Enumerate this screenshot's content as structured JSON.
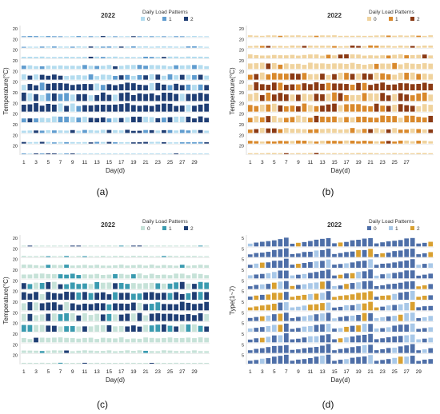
{
  "chart_data": [
    {
      "panel": "a",
      "type": "bar",
      "title": "2022",
      "legend_title": "Daily Load Patterns",
      "legend": [
        "0",
        "1",
        "2"
      ],
      "colors": [
        "#b3dcef",
        "#5f9ccf",
        "#1f3e74"
      ],
      "xlabel": "Day(d)",
      "ylabel": "Temperature(°C)",
      "x_ticks": [
        "1",
        "3",
        "5",
        "7",
        "9",
        "11",
        "13",
        "15",
        "17",
        "19",
        "21",
        "23",
        "25",
        "27",
        "29"
      ],
      "y_tick_label": "20",
      "rows": 12,
      "days": 31,
      "row_heights": [
        0.12,
        0.15,
        0.2,
        0.45,
        0.6,
        0.85,
        0.95,
        0.95,
        0.65,
        0.35,
        0.2,
        0.1
      ],
      "row_class_weights": [
        [
          0.6,
          0.3,
          0.1
        ],
        [
          0.6,
          0.3,
          0.1
        ],
        [
          0.7,
          0.2,
          0.1
        ],
        [
          0.7,
          0.25,
          0.05
        ],
        [
          0.5,
          0.2,
          0.3
        ],
        [
          0.1,
          0.2,
          0.7
        ],
        [
          0.15,
          0.1,
          0.75
        ],
        [
          0.15,
          0.05,
          0.8
        ],
        [
          0.4,
          0.2,
          0.4
        ],
        [
          0.55,
          0.2,
          0.25
        ],
        [
          0.6,
          0.2,
          0.2
        ],
        [
          0.6,
          0.2,
          0.2
        ]
      ]
    },
    {
      "panel": "b",
      "type": "bar",
      "title": "2022",
      "legend_title": "Daily Load Patterns",
      "legend": [
        "0",
        "1",
        "2"
      ],
      "colors": [
        "#f0d39e",
        "#d9892c",
        "#8b3a14"
      ],
      "xlabel": "Day(d)",
      "ylabel": "Temperature(°C)",
      "x_ticks": [
        "1",
        "3",
        "5",
        "7",
        "9",
        "11",
        "13",
        "15",
        "17",
        "19",
        "21",
        "23",
        "25",
        "27"
      ],
      "y_tick_label": "20",
      "rows": 12,
      "days": 31,
      "row_heights": [
        0.2,
        0.25,
        0.45,
        0.7,
        0.8,
        0.9,
        0.95,
        0.9,
        0.75,
        0.55,
        0.35,
        0.15
      ],
      "row_class_weights": [
        [
          0.8,
          0.15,
          0.05
        ],
        [
          0.7,
          0.2,
          0.1
        ],
        [
          0.8,
          0.15,
          0.05
        ],
        [
          0.75,
          0.2,
          0.05
        ],
        [
          0.3,
          0.4,
          0.3
        ],
        [
          0.1,
          0.2,
          0.7
        ],
        [
          0.25,
          0.35,
          0.4
        ],
        [
          0.3,
          0.4,
          0.3
        ],
        [
          0.15,
          0.7,
          0.15
        ],
        [
          0.6,
          0.3,
          0.1
        ],
        [
          0.5,
          0.45,
          0.05
        ],
        [
          0.85,
          0.1,
          0.05
        ]
      ]
    },
    {
      "panel": "c",
      "type": "bar",
      "title": "2022",
      "legend_title": "Daily Load Patterns",
      "legend": [
        "0",
        "1",
        "2"
      ],
      "colors": [
        "#c6e2d8",
        "#3a9bb0",
        "#1f3e74"
      ],
      "xlabel": "Day(d)",
      "ylabel": "Temperature(°C)",
      "x_ticks": [
        "1",
        "3",
        "5",
        "7",
        "9",
        "11",
        "13",
        "15",
        "17",
        "19",
        "21",
        "23",
        "25",
        "27",
        "29"
      ],
      "y_tick_label": "20",
      "rows": 12,
      "days": 31,
      "row_heights": [
        0.1,
        0.15,
        0.35,
        0.55,
        0.8,
        0.9,
        0.95,
        0.9,
        0.85,
        0.55,
        0.3,
        0.1
      ],
      "row_class_weights": [
        [
          0.8,
          0.1,
          0.1
        ],
        [
          0.85,
          0.1,
          0.05
        ],
        [
          0.9,
          0.1,
          0.0
        ],
        [
          0.85,
          0.15,
          0.0
        ],
        [
          0.3,
          0.4,
          0.3
        ],
        [
          0.1,
          0.2,
          0.7
        ],
        [
          0.1,
          0.1,
          0.8
        ],
        [
          0.2,
          0.2,
          0.6
        ],
        [
          0.3,
          0.3,
          0.4
        ],
        [
          0.9,
          0.05,
          0.05
        ],
        [
          0.85,
          0.1,
          0.05
        ],
        [
          0.9,
          0.05,
          0.05
        ]
      ]
    },
    {
      "panel": "d",
      "type": "bar",
      "title": "2022",
      "legend_title": "Daily Load Patterns",
      "legend": [
        "0",
        "1",
        "2"
      ],
      "colors": [
        "#4e6fa8",
        "#a8c8e8",
        "#d9a030"
      ],
      "xlabel": "Day(d)",
      "ylabel": "Type(1~7)",
      "x_ticks": [
        "1",
        "3",
        "5",
        "7",
        "9",
        "11",
        "13",
        "15",
        "17",
        "19",
        "21",
        "23",
        "25",
        "27",
        "29"
      ],
      "y_tick_label": "5",
      "rows": 12,
      "days": 31,
      "row_heights": [
        0.85,
        0.85,
        0.85,
        0.85,
        0.85,
        0.85,
        0.85,
        0.85,
        0.85,
        0.85,
        0.85,
        0.85
      ],
      "row_class_weights": [
        [
          0.9,
          0.05,
          0.05
        ],
        [
          0.85,
          0.1,
          0.05
        ],
        [
          0.8,
          0.15,
          0.05
        ],
        [
          0.8,
          0.15,
          0.05
        ],
        [
          0.6,
          0.15,
          0.25
        ],
        [
          0.3,
          0.2,
          0.5
        ],
        [
          0.4,
          0.2,
          0.4
        ],
        [
          0.5,
          0.3,
          0.2
        ],
        [
          0.6,
          0.3,
          0.1
        ],
        [
          0.6,
          0.3,
          0.1
        ],
        [
          0.8,
          0.15,
          0.05
        ],
        [
          0.85,
          0.1,
          0.05
        ]
      ]
    }
  ],
  "captions": [
    "(a)",
    "(b)",
    "(c)",
    "(d)"
  ]
}
